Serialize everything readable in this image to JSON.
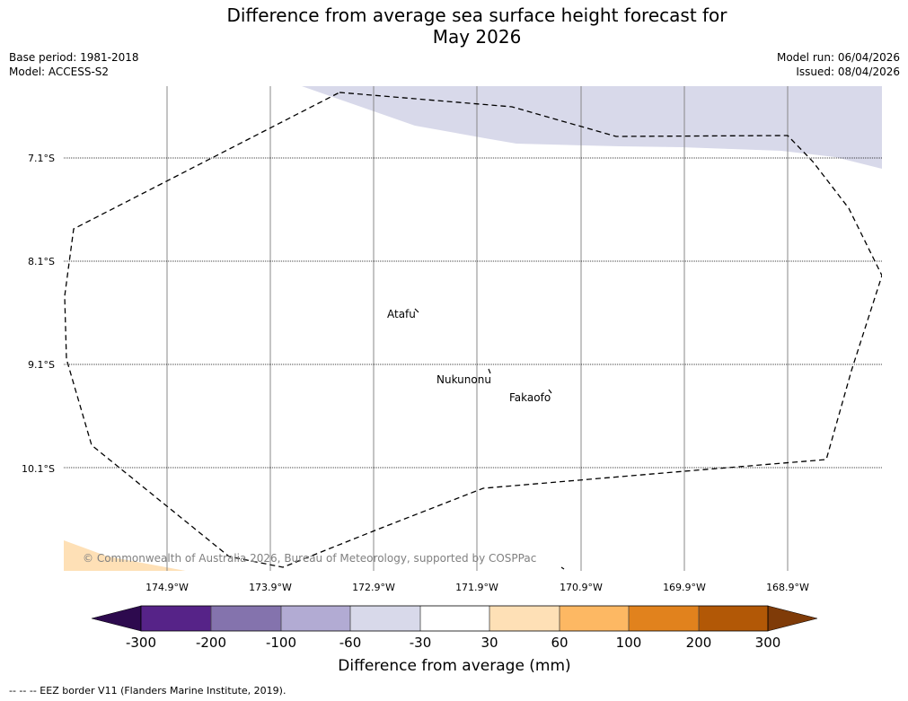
{
  "title": {
    "line1": "Difference from average sea surface height forecast for",
    "line2": "May 2026"
  },
  "meta": {
    "base_period": "Base period: 1981-2018",
    "model": "Model: ACCESS-S2",
    "model_run": "Model run: 06/04/2026",
    "issued": "Issued: 08/04/2026"
  },
  "map": {
    "lat_labels": [
      "7.1°S",
      "8.1°S",
      "9.1°S",
      "10.1°S"
    ],
    "lon_labels": [
      "174.9°W",
      "173.9°W",
      "172.9°W",
      "171.9°W",
      "170.9°W",
      "169.9°W",
      "168.9°W"
    ],
    "places": [
      {
        "name": "Atafu"
      },
      {
        "name": "Nukunonu"
      },
      {
        "name": "Fakaofo"
      }
    ],
    "copyright": "© Commonwealth of Australia 2026, Bureau of Meteorology, supported by COSPPac"
  },
  "colorbar": {
    "label": "Difference from average (mm)",
    "ticks": [
      "-300",
      "-200",
      "-100",
      "-60",
      "-30",
      "30",
      "60",
      "100",
      "200",
      "300"
    ],
    "colors": [
      "#2d0a4e",
      "#562388",
      "#8473ad",
      "#b2abd3",
      "#d8d9ea",
      "#ffffff",
      "#fee0b6",
      "#fdb863",
      "#e1821d",
      "#b25806",
      "#7f3b08"
    ]
  },
  "footnote": "--  --  -- EEZ border V11 (Flanders Marine Institute, 2019)."
}
